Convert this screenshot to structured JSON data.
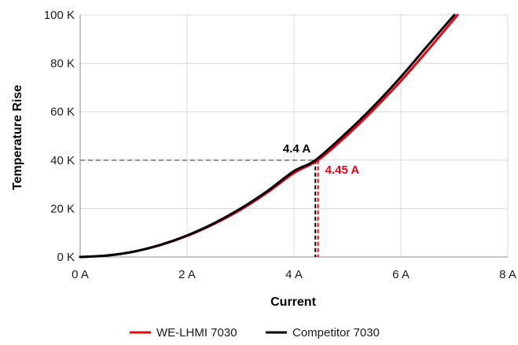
{
  "chart_data": {
    "type": "line",
    "xlabel": "Current",
    "ylabel": "Temperature Rise",
    "xlim": [
      0,
      8
    ],
    "ylim": [
      0,
      100
    ],
    "x_ticks": [
      0,
      2,
      4,
      6,
      8
    ],
    "x_tick_labels": [
      "0 A",
      "2 A",
      "4 A",
      "6 A",
      "8 A"
    ],
    "y_ticks": [
      0,
      20,
      40,
      60,
      80,
      100
    ],
    "y_tick_labels": [
      "0 K",
      "20 K",
      "40 K",
      "60 K",
      "80 K",
      "100 K"
    ],
    "grid": true,
    "legend_position": "bottom",
    "series": [
      {
        "name": "WE-LHMI 7030",
        "color": "#e30613",
        "x": [
          0,
          0.5,
          1,
          1.5,
          2,
          2.5,
          3,
          3.5,
          4,
          4.45,
          5,
          5.5,
          6,
          6.5,
          7.06
        ],
        "y": [
          0,
          0.6,
          2.2,
          4.9,
          8.7,
          13.6,
          19.5,
          26.6,
          34.7,
          40,
          50.4,
          61.1,
          72.7,
          85.3,
          100
        ]
      },
      {
        "name": "Competitor 7030",
        "color": "#000000",
        "x": [
          0,
          0.5,
          1,
          1.5,
          2,
          2.5,
          3,
          3.5,
          4,
          4.4,
          5,
          5.5,
          6,
          6.5,
          7.0
        ],
        "y": [
          0,
          0.6,
          2.2,
          5.0,
          8.9,
          13.9,
          20.0,
          27.2,
          35.5,
          40,
          51.7,
          62.5,
          74.4,
          87.3,
          100
        ]
      }
    ],
    "reference_line": {
      "y": 40,
      "color": "#7f7f7f"
    },
    "annotations": [
      {
        "text": "4.4 A",
        "x": 4.4,
        "y": 40,
        "color": "#000000"
      },
      {
        "text": "4.45 A",
        "x": 4.45,
        "y": 40,
        "color": "#e30613"
      }
    ]
  }
}
